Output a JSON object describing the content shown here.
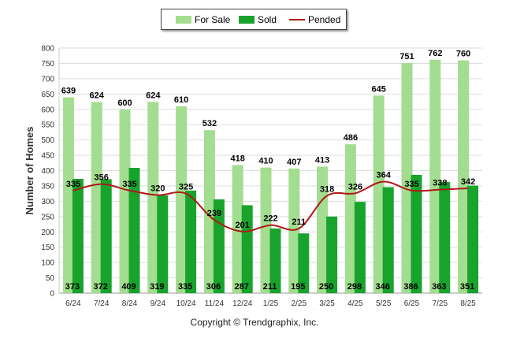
{
  "legend": {
    "for_sale": "For Sale",
    "sold": "Sold",
    "pended": "Pended"
  },
  "copyright": "Copyright © Trendgraphix, Inc.",
  "colors": {
    "for_sale": "#a3dd8f",
    "sold": "#18a32d",
    "pended": "#b01818",
    "grid": "#dddddd"
  },
  "chart_data": {
    "type": "bar",
    "ylabel": "Number of Homes",
    "xlabel": "",
    "ylim": [
      0,
      800
    ],
    "yticks": [
      0,
      50,
      100,
      150,
      200,
      250,
      300,
      350,
      400,
      450,
      500,
      550,
      600,
      650,
      700,
      750,
      800
    ],
    "grid": true,
    "legend_position": "top-center",
    "categories": [
      "6/24",
      "7/24",
      "8/24",
      "9/24",
      "10/24",
      "11/24",
      "12/24",
      "1/25",
      "2/25",
      "3/25",
      "4/25",
      "5/25",
      "6/25",
      "7/25",
      "8/25"
    ],
    "series": [
      {
        "name": "For Sale",
        "type": "bar",
        "values": [
          639,
          624,
          600,
          624,
          610,
          532,
          418,
          410,
          407,
          413,
          486,
          645,
          751,
          762,
          760
        ]
      },
      {
        "name": "Sold",
        "type": "bar",
        "values": [
          373,
          372,
          409,
          319,
          335,
          306,
          287,
          211,
          195,
          250,
          298,
          346,
          386,
          363,
          351
        ]
      },
      {
        "name": "Pended",
        "type": "line",
        "values": [
          335,
          356,
          335,
          320,
          325,
          239,
          201,
          222,
          211,
          318,
          326,
          364,
          335,
          338,
          342
        ]
      }
    ]
  }
}
